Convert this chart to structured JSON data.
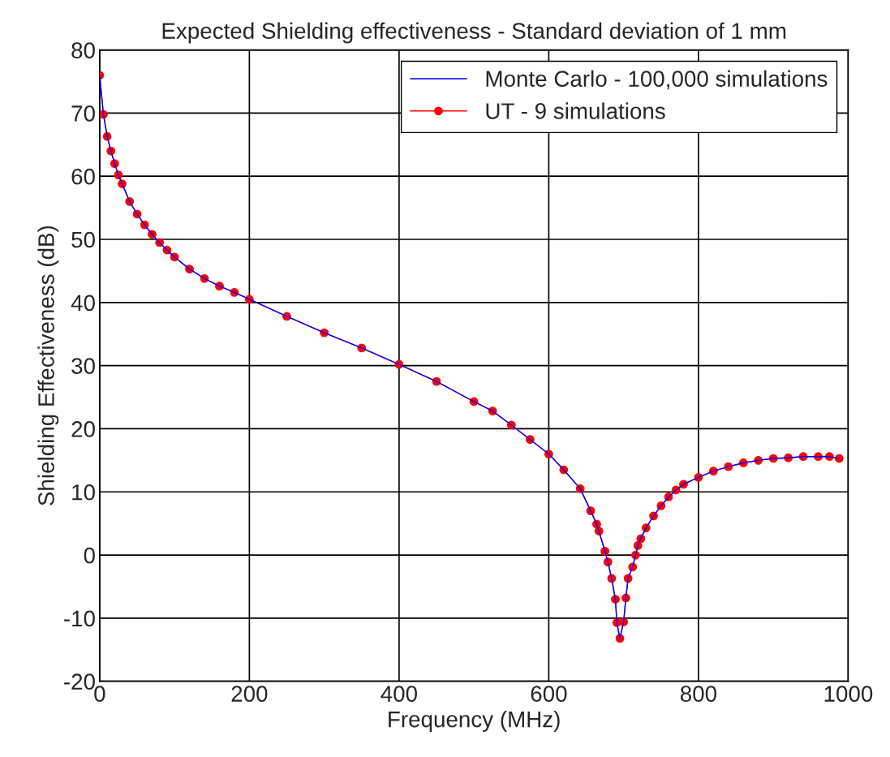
{
  "chart_data": {
    "type": "line",
    "title": "Expected Shielding effectiveness - Standard deviation of 1 mm",
    "xlabel": "Frequency (MHz)",
    "ylabel": "Shielding Effectiveness (dB)",
    "x": [
      0,
      5,
      10,
      15,
      20,
      25,
      30,
      40,
      50,
      60,
      70,
      80,
      90,
      100,
      120,
      140,
      160,
      180,
      200,
      250,
      300,
      350,
      400,
      450,
      500,
      525,
      550,
      575,
      600,
      620,
      642,
      656,
      664,
      667,
      675,
      679,
      684,
      689,
      691,
      695,
      700,
      703,
      706,
      712,
      716,
      719,
      723,
      730,
      740,
      750,
      760,
      770,
      780,
      800,
      820,
      840,
      860,
      880,
      900,
      920,
      940,
      960,
      975,
      988
    ],
    "series": [
      {
        "name": "Monte Carlo - 100,000 simulations",
        "color": "#0000ff",
        "marker": "none",
        "values": [
          76,
          69.8,
          66.3,
          64,
          62,
          60.2,
          58.8,
          56,
          54,
          52.3,
          50.8,
          49.5,
          48.3,
          47.2,
          45.3,
          43.8,
          42.6,
          41.6,
          40.5,
          37.8,
          35.2,
          32.8,
          30.2,
          27.5,
          24.3,
          22.8,
          20.6,
          18.3,
          16.0,
          13.5,
          10.5,
          7.0,
          4.9,
          3.8,
          0.6,
          -1.1,
          -3.7,
          -7.0,
          -10.7,
          -13.2,
          -10.6,
          -6.8,
          -3.7,
          -1.9,
          0,
          1.5,
          2.6,
          4.3,
          6.2,
          7.8,
          9.2,
          10.3,
          11.2,
          12.3,
          13.3,
          14.0,
          14.6,
          15.0,
          15.3,
          15.4,
          15.6,
          15.6,
          15.6,
          15.3
        ]
      },
      {
        "name": "UT - 9 simulations",
        "color": "#ff0000",
        "marker": "circle",
        "values": [
          76,
          69.8,
          66.3,
          64,
          62,
          60.2,
          58.8,
          56,
          54,
          52.3,
          50.8,
          49.5,
          48.3,
          47.2,
          45.3,
          43.8,
          42.6,
          41.6,
          40.5,
          37.8,
          35.2,
          32.8,
          30.2,
          27.5,
          24.3,
          22.8,
          20.6,
          18.3,
          16.0,
          13.5,
          10.5,
          7.0,
          4.9,
          3.8,
          0.6,
          -1.1,
          -3.7,
          -7.0,
          -10.7,
          -13.2,
          -10.6,
          -6.8,
          -3.7,
          -1.9,
          0,
          1.5,
          2.6,
          4.3,
          6.2,
          7.8,
          9.2,
          10.3,
          11.2,
          12.3,
          13.3,
          14.0,
          14.6,
          15.0,
          15.3,
          15.4,
          15.6,
          15.6,
          15.6,
          15.3
        ]
      }
    ],
    "xlim": [
      0,
      1000
    ],
    "ylim": [
      -20,
      80
    ],
    "xticks": [
      0,
      200,
      400,
      600,
      800,
      1000
    ],
    "yticks": [
      -20,
      -10,
      0,
      10,
      20,
      30,
      40,
      50,
      60,
      70,
      80
    ],
    "grid": true,
    "legend": "top right",
    "line_style": "solid"
  }
}
